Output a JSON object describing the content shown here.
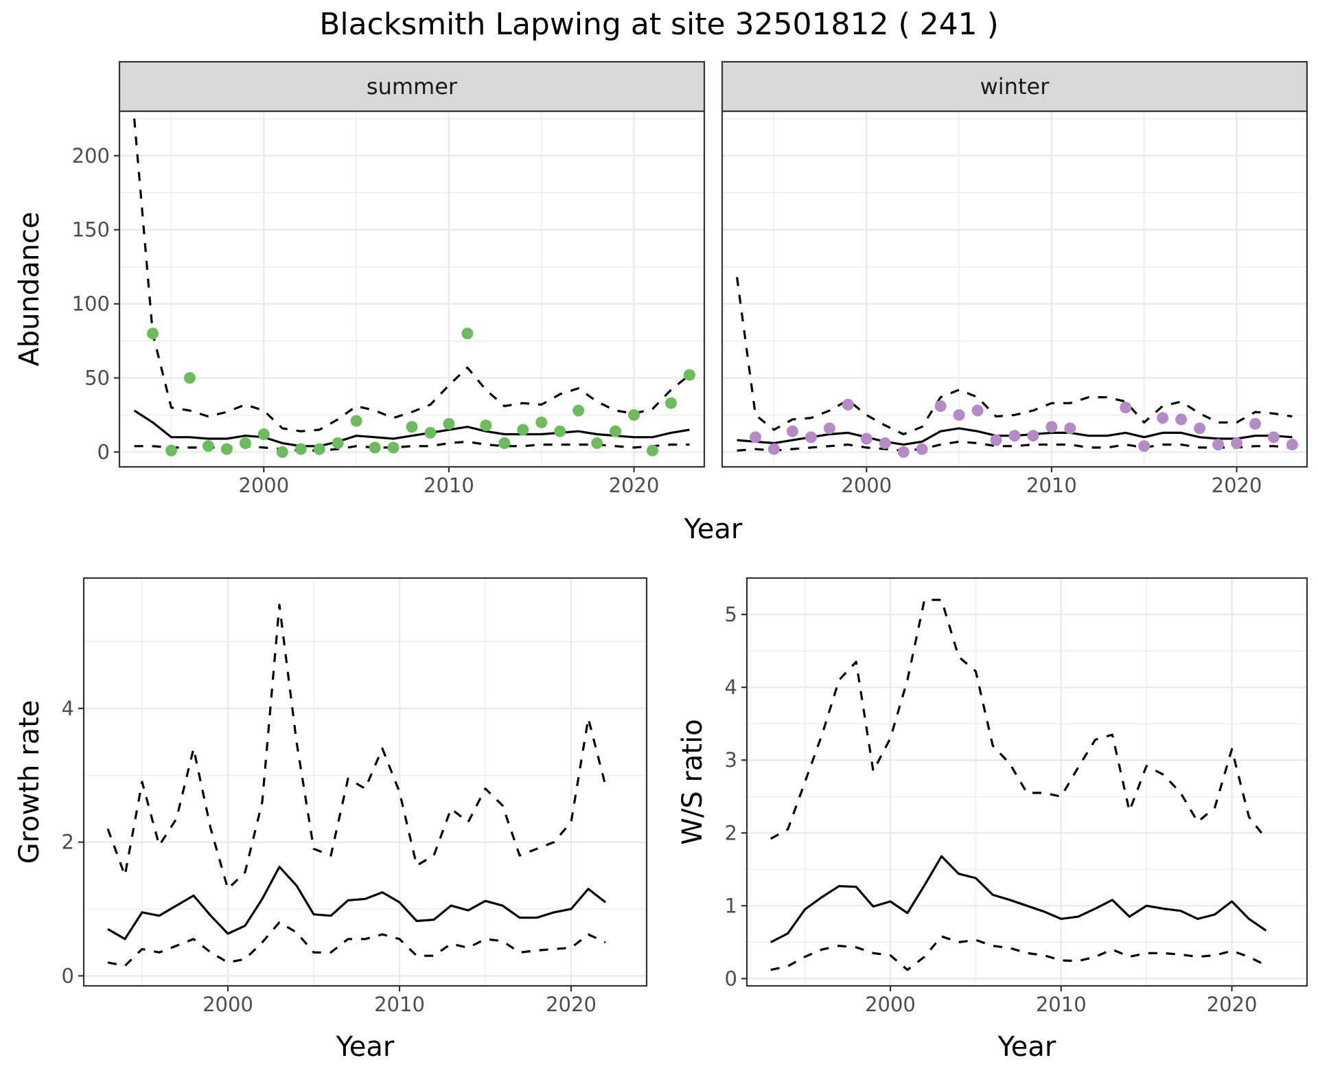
{
  "title": "Blacksmith Lapwing at site 32501812 ( 241 )",
  "colors": {
    "summer_points": "#6ABD5A",
    "winter_points": "#B58BC7"
  },
  "chart_data": [
    {
      "type": "line",
      "panel": "summer",
      "strip_label": "summer",
      "xlabel": "Year",
      "ylabel": "Abundance",
      "xlim": [
        1992.2,
        2023.8
      ],
      "ylim": [
        -10,
        230
      ],
      "x_ticks": [
        2000,
        2010,
        2020
      ],
      "y_ticks": [
        0,
        50,
        100,
        150,
        200
      ],
      "grid": true,
      "point_color": "#6ABD5A",
      "points": {
        "x": [
          1994,
          1995,
          1996,
          1997,
          1998,
          1999,
          2000,
          2001,
          2002,
          2003,
          2004,
          2005,
          2006,
          2007,
          2008,
          2009,
          2010,
          2011,
          2012,
          2013,
          2014,
          2015,
          2016,
          2017,
          2018,
          2019,
          2020,
          2021,
          2022,
          2023
        ],
        "y": [
          80,
          1,
          50,
          4,
          2,
          6,
          12,
          0,
          2,
          2,
          6,
          21,
          3,
          3,
          17,
          13,
          19,
          80,
          18,
          6,
          15,
          20,
          14,
          28,
          6,
          14,
          25,
          1,
          33,
          52
        ]
      },
      "series": [
        {
          "style": "solid",
          "x": [
            1993,
            1994,
            1995,
            1996,
            1997,
            1998,
            1999,
            2000,
            2001,
            2002,
            2003,
            2004,
            2005,
            2006,
            2007,
            2008,
            2009,
            2010,
            2011,
            2012,
            2013,
            2014,
            2015,
            2016,
            2017,
            2018,
            2019,
            2020,
            2021,
            2022,
            2023
          ],
          "y": [
            28,
            20,
            10,
            10,
            9,
            9,
            11,
            10,
            6,
            4,
            4,
            7,
            11,
            10,
            9,
            11,
            13,
            15,
            17,
            14,
            12,
            12,
            12,
            13,
            14,
            12,
            11,
            10,
            10,
            13,
            15
          ]
        },
        {
          "style": "dashed",
          "x": [
            1993,
            1994,
            1995,
            1996,
            1997,
            1998,
            1999,
            2000,
            2001,
            2002,
            2003,
            2004,
            2005,
            2006,
            2007,
            2008,
            2009,
            2010,
            2011,
            2012,
            2013,
            2014,
            2015,
            2016,
            2017,
            2018,
            2019,
            2020,
            2021,
            2022,
            2023
          ],
          "y": [
            225,
            80,
            30,
            28,
            24,
            27,
            32,
            28,
            16,
            14,
            15,
            22,
            31,
            28,
            23,
            27,
            32,
            45,
            57,
            42,
            31,
            33,
            32,
            39,
            43,
            34,
            28,
            26,
            29,
            42,
            52
          ]
        },
        {
          "style": "dashed",
          "x": [
            1993,
            1994,
            1995,
            1996,
            1997,
            1998,
            1999,
            2000,
            2001,
            2002,
            2003,
            2004,
            2005,
            2006,
            2007,
            2008,
            2009,
            2010,
            2011,
            2012,
            2013,
            2014,
            2015,
            2016,
            2017,
            2018,
            2019,
            2020,
            2021,
            2022,
            2023
          ],
          "y": [
            4,
            4,
            3,
            3,
            3,
            3,
            4,
            3,
            2,
            1,
            1,
            2,
            4,
            3,
            3,
            4,
            4,
            6,
            7,
            5,
            4,
            4,
            5,
            5,
            5,
            5,
            4,
            3,
            4,
            5,
            5
          ]
        }
      ]
    },
    {
      "type": "line",
      "panel": "winter",
      "strip_label": "winter",
      "xlabel": "Year",
      "ylabel": "Abundance",
      "xlim": [
        1992.2,
        2023.8
      ],
      "ylim": [
        -10,
        230
      ],
      "x_ticks": [
        2000,
        2010,
        2020
      ],
      "y_ticks": [
        0,
        50,
        100,
        150,
        200
      ],
      "grid": true,
      "point_color": "#B58BC7",
      "points": {
        "x": [
          1994,
          1995,
          1996,
          1997,
          1998,
          1999,
          2000,
          2001,
          2002,
          2003,
          2004,
          2005,
          2006,
          2007,
          2008,
          2009,
          2010,
          2011,
          2014,
          2015,
          2016,
          2017,
          2018,
          2019,
          2020,
          2021,
          2022,
          2023
        ],
        "y": [
          10,
          2,
          14,
          10,
          16,
          32,
          9,
          6,
          0,
          2,
          31,
          25,
          28,
          8,
          11,
          11,
          17,
          16,
          30,
          4,
          23,
          22,
          16,
          5,
          6,
          19,
          10,
          5
        ]
      },
      "series": [
        {
          "style": "solid",
          "x": [
            1993,
            1994,
            1995,
            1996,
            1997,
            1998,
            1999,
            2000,
            2001,
            2002,
            2003,
            2004,
            2005,
            2006,
            2007,
            2008,
            2009,
            2010,
            2011,
            2012,
            2013,
            2014,
            2015,
            2016,
            2017,
            2018,
            2019,
            2020,
            2021,
            2022,
            2023
          ],
          "y": [
            8,
            7,
            6,
            8,
            10,
            12,
            13,
            10,
            7,
            5,
            7,
            14,
            16,
            14,
            11,
            11,
            12,
            13,
            13,
            11,
            11,
            13,
            10,
            13,
            13,
            10,
            9,
            9,
            11,
            11,
            10
          ]
        },
        {
          "style": "dashed",
          "x": [
            1993,
            1994,
            1995,
            1996,
            1997,
            1998,
            1999,
            2000,
            2001,
            2002,
            2003,
            2004,
            2005,
            2006,
            2007,
            2008,
            2009,
            2010,
            2011,
            2012,
            2013,
            2014,
            2015,
            2016,
            2017,
            2018,
            2019,
            2020,
            2021,
            2022,
            2023
          ],
          "y": [
            118,
            25,
            15,
            22,
            23,
            28,
            35,
            25,
            18,
            12,
            17,
            37,
            42,
            37,
            24,
            25,
            28,
            33,
            33,
            37,
            37,
            34,
            20,
            31,
            34,
            26,
            20,
            20,
            27,
            26,
            24
          ]
        },
        {
          "style": "dashed",
          "x": [
            1993,
            1994,
            1995,
            1996,
            1997,
            1998,
            1999,
            2000,
            2001,
            2002,
            2003,
            2004,
            2005,
            2006,
            2007,
            2008,
            2009,
            2010,
            2011,
            2012,
            2013,
            2014,
            2015,
            2016,
            2017,
            2018,
            2019,
            2020,
            2021,
            2022,
            2023
          ],
          "y": [
            1,
            2,
            1,
            2,
            3,
            4,
            5,
            3,
            2,
            1,
            2,
            5,
            7,
            6,
            4,
            4,
            5,
            5,
            5,
            3,
            3,
            5,
            3,
            5,
            5,
            3,
            3,
            3,
            4,
            4,
            3
          ]
        }
      ]
    },
    {
      "type": "line",
      "panel": "growth",
      "xlabel": "Year",
      "ylabel": "Growth rate",
      "xlim": [
        1991.6,
        2024.4
      ],
      "ylim": [
        -0.15,
        5.95
      ],
      "x_ticks": [
        2000,
        2010,
        2020
      ],
      "y_ticks": [
        0,
        2,
        4
      ],
      "grid": true,
      "series": [
        {
          "style": "solid",
          "x": [
            1993,
            1994,
            1995,
            1996,
            1997,
            1998,
            1999,
            2000,
            2001,
            2002,
            2003,
            2004,
            2005,
            2006,
            2007,
            2008,
            2009,
            2010,
            2011,
            2012,
            2013,
            2014,
            2015,
            2016,
            2017,
            2018,
            2019,
            2020,
            2021,
            2022
          ],
          "y": [
            0.7,
            0.55,
            0.95,
            0.9,
            1.05,
            1.2,
            0.9,
            0.63,
            0.75,
            1.15,
            1.63,
            1.35,
            0.92,
            0.9,
            1.13,
            1.15,
            1.25,
            1.1,
            0.82,
            0.84,
            1.05,
            0.98,
            1.12,
            1.05,
            0.87,
            0.87,
            0.95,
            1.0,
            1.3,
            1.1
          ]
        },
        {
          "style": "dashed",
          "x": [
            1993,
            1994,
            1995,
            1996,
            1997,
            1998,
            1999,
            2000,
            2001,
            2002,
            2003,
            2004,
            2005,
            2006,
            2007,
            2008,
            2009,
            2010,
            2011,
            2012,
            2013,
            2014,
            2015,
            2016,
            2017,
            2018,
            2019,
            2020,
            2021,
            2022
          ],
          "y": [
            2.2,
            1.5,
            2.9,
            1.95,
            2.35,
            3.4,
            2.2,
            1.3,
            1.55,
            2.6,
            5.55,
            3.5,
            1.9,
            1.8,
            2.95,
            2.8,
            3.4,
            2.75,
            1.65,
            1.8,
            2.5,
            2.3,
            2.8,
            2.55,
            1.8,
            1.9,
            2.0,
            2.3,
            3.85,
            2.85
          ]
        },
        {
          "style": "dashed",
          "x": [
            1993,
            1994,
            1995,
            1996,
            1997,
            1998,
            1999,
            2000,
            2001,
            2002,
            2003,
            2004,
            2005,
            2006,
            2007,
            2008,
            2009,
            2010,
            2011,
            2012,
            2013,
            2014,
            2015,
            2016,
            2017,
            2018,
            2019,
            2020,
            2021,
            2022
          ],
          "y": [
            0.2,
            0.15,
            0.4,
            0.35,
            0.45,
            0.55,
            0.35,
            0.2,
            0.25,
            0.5,
            0.8,
            0.65,
            0.35,
            0.35,
            0.55,
            0.55,
            0.62,
            0.55,
            0.3,
            0.3,
            0.48,
            0.42,
            0.55,
            0.52,
            0.35,
            0.38,
            0.4,
            0.42,
            0.62,
            0.5
          ]
        }
      ]
    },
    {
      "type": "line",
      "panel": "ws_ratio",
      "xlabel": "Year",
      "ylabel": "W/S ratio",
      "xlim": [
        1991.6,
        2024.4
      ],
      "ylim": [
        -0.1,
        5.5
      ],
      "x_ticks": [
        2000,
        2010,
        2020
      ],
      "y_ticks": [
        0,
        1,
        2,
        3,
        4,
        5
      ],
      "grid": true,
      "series": [
        {
          "style": "solid",
          "x": [
            1993,
            1994,
            1995,
            1996,
            1997,
            1998,
            1999,
            2000,
            2001,
            2002,
            2003,
            2004,
            2005,
            2006,
            2007,
            2008,
            2009,
            2010,
            2011,
            2012,
            2013,
            2014,
            2015,
            2016,
            2017,
            2018,
            2019,
            2020,
            2021,
            2022
          ],
          "y": [
            0.5,
            0.62,
            0.95,
            1.12,
            1.27,
            1.26,
            0.99,
            1.06,
            0.9,
            1.28,
            1.68,
            1.44,
            1.38,
            1.15,
            1.08,
            1.0,
            0.92,
            0.82,
            0.85,
            0.96,
            1.08,
            0.85,
            1.0,
            0.96,
            0.93,
            0.82,
            0.88,
            1.06,
            0.82,
            0.66
          ]
        },
        {
          "style": "dashed",
          "x": [
            1993,
            1994,
            1995,
            1996,
            1997,
            1998,
            1999,
            2000,
            2001,
            2002,
            2003,
            2004,
            2005,
            2006,
            2007,
            2008,
            2009,
            2010,
            2011,
            2012,
            2013,
            2014,
            2015,
            2016,
            2017,
            2018,
            2019,
            2020,
            2021,
            2022
          ],
          "y": [
            1.92,
            2.05,
            2.7,
            3.35,
            4.1,
            4.35,
            2.85,
            3.3,
            4.1,
            5.2,
            5.2,
            4.42,
            4.22,
            3.2,
            2.95,
            2.55,
            2.55,
            2.5,
            2.9,
            3.28,
            3.35,
            2.3,
            2.92,
            2.8,
            2.55,
            2.15,
            2.35,
            3.15,
            2.22,
            1.92
          ]
        },
        {
          "style": "dashed",
          "x": [
            1993,
            1994,
            1995,
            1996,
            1997,
            1998,
            1999,
            2000,
            2001,
            2002,
            2003,
            2004,
            2005,
            2006,
            2007,
            2008,
            2009,
            2010,
            2011,
            2012,
            2013,
            2014,
            2015,
            2016,
            2017,
            2018,
            2019,
            2020,
            2021,
            2022
          ],
          "y": [
            0.12,
            0.17,
            0.3,
            0.4,
            0.45,
            0.43,
            0.35,
            0.32,
            0.12,
            0.3,
            0.58,
            0.5,
            0.53,
            0.45,
            0.42,
            0.35,
            0.32,
            0.25,
            0.24,
            0.3,
            0.4,
            0.3,
            0.35,
            0.35,
            0.33,
            0.3,
            0.32,
            0.38,
            0.3,
            0.18
          ]
        }
      ]
    }
  ]
}
